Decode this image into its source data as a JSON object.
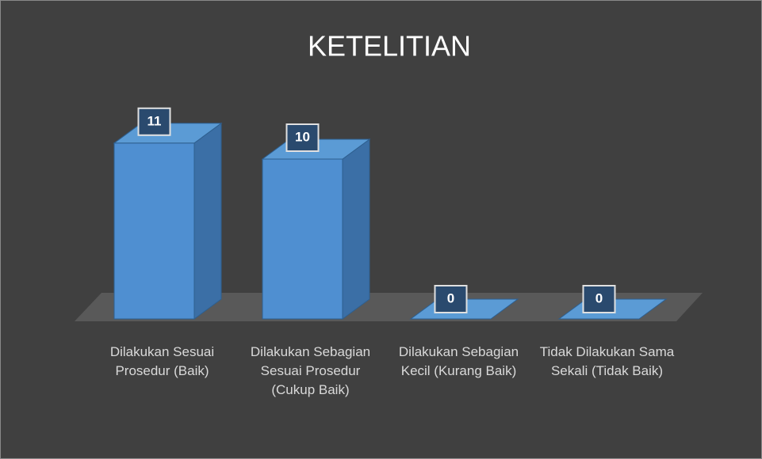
{
  "chart_data": {
    "type": "bar",
    "title": "KETELITIAN",
    "categories": [
      "Dilakukan Sesuai Prosedur (Baik)",
      "Dilakukan Sebagian Sesuai Prosedur (Cukup Baik)",
      "Dilakukan Sebagian Kecil (Kurang Baik)",
      "Tidak Dilakukan Sama Sekali (Tidak Baik)"
    ],
    "values": [
      11,
      10,
      0,
      0
    ],
    "color": "#4f8fd1"
  }
}
